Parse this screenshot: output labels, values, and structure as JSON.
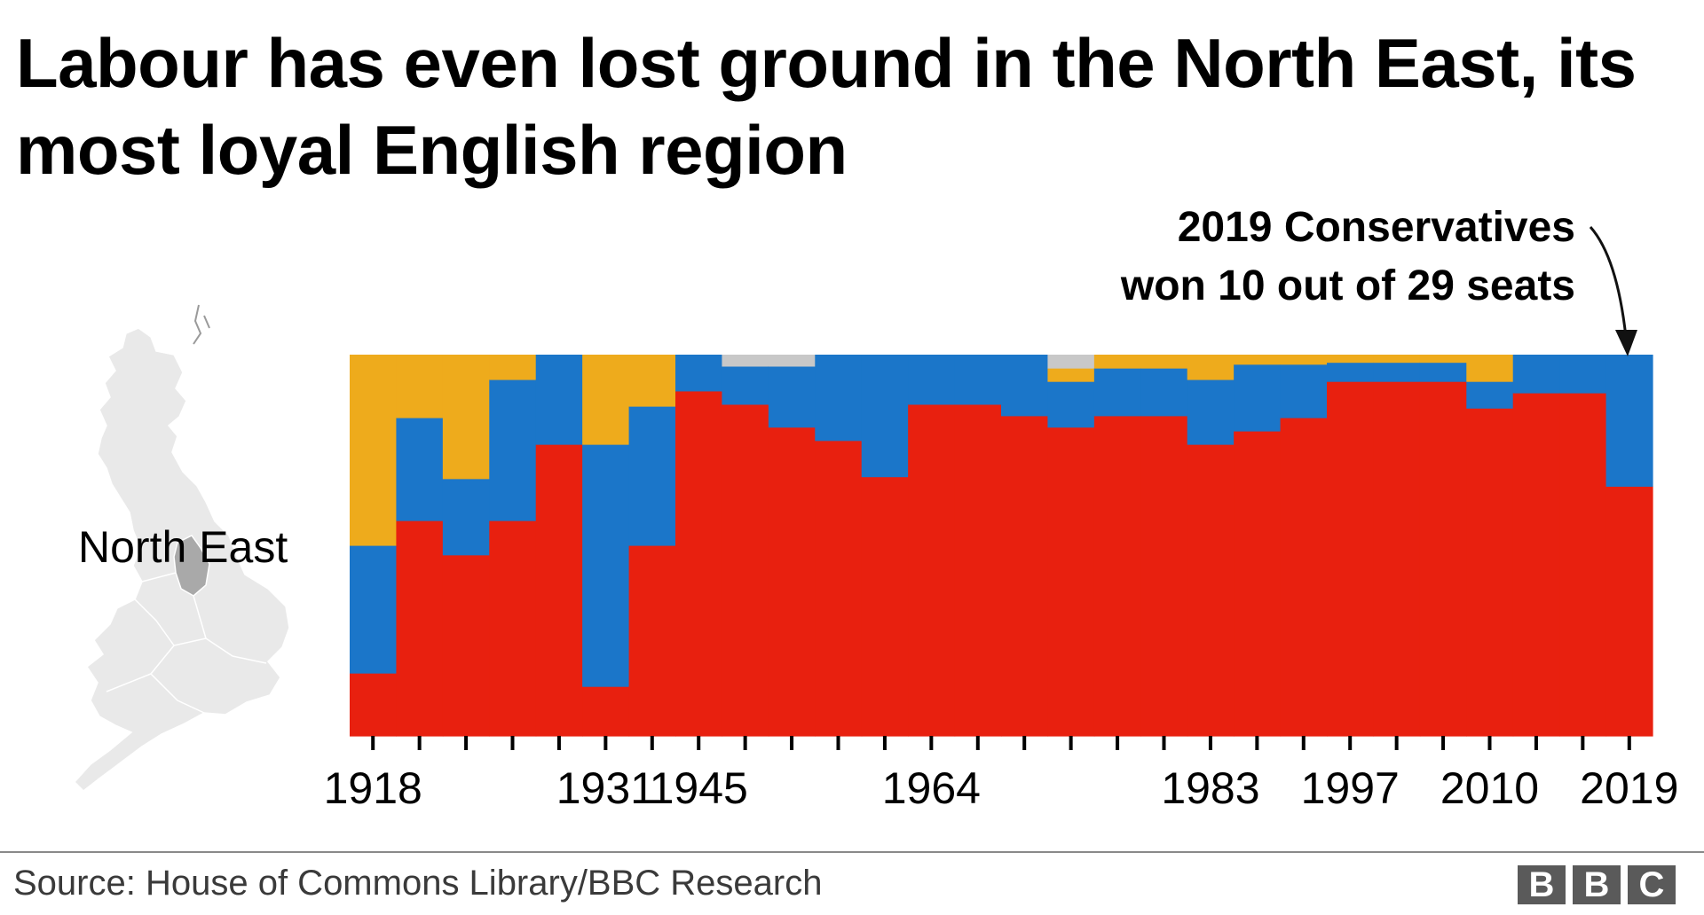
{
  "title": "Labour has even lost ground in the North East, its most loyal English region",
  "source": "Source: House of Commons Library/BBC Research",
  "logo": [
    "B",
    "B",
    "C"
  ],
  "map_label": "North East",
  "annotation": {
    "line1": "2019 Conservatives",
    "line2": "won 10 out of 29 seats"
  },
  "colors": {
    "labour": "#e8200f",
    "conservative": "#1b76c9",
    "liberal": "#eeab1c",
    "other": "#c8c8c8",
    "map_fill": "#e9e9e9",
    "map_highlight": "#a9a9a9"
  },
  "chart_data": {
    "type": "bar",
    "stacked": true,
    "normalized": true,
    "x_label_years": [
      "1918",
      "1931",
      "1945",
      "1964",
      "1983",
      "1997",
      "2010",
      "2019"
    ],
    "elections": [
      "1918",
      "1922",
      "1923",
      "1924",
      "1929",
      "1931",
      "1935",
      "1945",
      "1950",
      "1951",
      "1955",
      "1959",
      "1964",
      "1966",
      "1970",
      "1974 Feb",
      "1974 Oct",
      "1979",
      "1983",
      "1987",
      "1992",
      "1997",
      "2001",
      "2005",
      "2010",
      "2015",
      "2017",
      "2019"
    ],
    "series": [
      {
        "name": "Labour",
        "color_key": "labour",
        "values": [
          16.5,
          56.5,
          47.5,
          56.5,
          76.5,
          13.0,
          50.0,
          90.5,
          87.0,
          81.0,
          77.5,
          68.0,
          87.0,
          87.0,
          84.0,
          81.0,
          84.0,
          84.0,
          76.5,
          80.0,
          83.5,
          93.0,
          93.0,
          93.0,
          86.0,
          90.0,
          90.0,
          65.5
        ]
      },
      {
        "name": "Conservative",
        "color_key": "conservative",
        "values": [
          33.5,
          27.0,
          20.0,
          37.0,
          23.5,
          63.5,
          36.5,
          9.5,
          10.0,
          16.0,
          22.5,
          32.0,
          13.0,
          13.0,
          16.0,
          12.0,
          12.5,
          12.5,
          17.0,
          17.5,
          14.0,
          5.0,
          5.0,
          5.0,
          7.0,
          10.0,
          10.0,
          34.5
        ]
      },
      {
        "name": "Liberal",
        "color_key": "liberal",
        "values": [
          50.0,
          16.5,
          32.5,
          6.5,
          0.0,
          23.5,
          13.5,
          0.0,
          0.0,
          0.0,
          0.0,
          0.0,
          0.0,
          0.0,
          0.0,
          3.5,
          3.5,
          3.5,
          6.5,
          2.5,
          2.5,
          2.0,
          2.0,
          2.0,
          7.0,
          0.0,
          0.0,
          0.0
        ]
      },
      {
        "name": "Other",
        "color_key": "other",
        "values": [
          0.0,
          0.0,
          0.0,
          0.0,
          0.0,
          0.0,
          0.0,
          0.0,
          3.0,
          3.0,
          0.0,
          0.0,
          0.0,
          0.0,
          0.0,
          3.5,
          0.0,
          0.0,
          0.0,
          0.0,
          0.0,
          0.0,
          0.0,
          0.0,
          0.0,
          0.0,
          0.0,
          0.0
        ]
      }
    ],
    "ylim": [
      0,
      100
    ],
    "grid": false,
    "legend": "none"
  }
}
